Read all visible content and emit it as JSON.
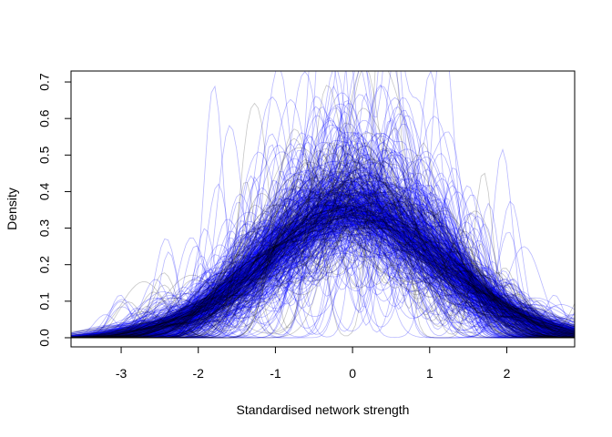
{
  "chart_data": {
    "type": "line",
    "title": "",
    "xlabel": "Standardised network strength",
    "ylabel": "Density",
    "xlim": [
      -3.65,
      2.88
    ],
    "ylim": [
      -0.025,
      0.73
    ],
    "x_ticks": [
      -3,
      -2,
      -1,
      0,
      1,
      2
    ],
    "y_ticks": [
      0.0,
      0.1,
      0.2,
      0.3,
      0.4,
      0.5,
      0.6,
      0.7
    ],
    "grid": false,
    "legend": "none",
    "series_groups": [
      {
        "color": "#0000ff",
        "opacity": 0.28,
        "curve_count": 420,
        "description": "many kernel density curves of standardised strength",
        "representative_curves": [
          {
            "x": [
              -3.6,
              -3,
              -2,
              -1,
              0,
              1,
              2,
              2.9
            ],
            "y": [
              0.02,
              0.05,
              0.12,
              0.25,
              0.3,
              0.25,
              0.1,
              0.03
            ]
          },
          {
            "x": [
              -3.6,
              -3,
              -2,
              -1,
              0,
              1,
              2,
              2.9
            ],
            "y": [
              0.03,
              0.06,
              0.14,
              0.22,
              0.24,
              0.22,
              0.13,
              0.05
            ]
          },
          {
            "x": [
              -3.6,
              -2,
              -1,
              -0.5,
              0,
              0.5,
              1,
              2,
              2.9
            ],
            "y": [
              0.0,
              0.03,
              0.2,
              0.55,
              0.72,
              0.5,
              0.2,
              0.02,
              0.0
            ]
          }
        ]
      },
      {
        "color": "#000000",
        "opacity": 0.22,
        "curve_count": 120,
        "description": "density curves drawn in black",
        "representative_curves": [
          {
            "x": [
              -3.6,
              -2,
              -1,
              0,
              0.5,
              1,
              2,
              2.9
            ],
            "y": [
              0.0,
              0.08,
              0.28,
              0.36,
              0.4,
              0.32,
              0.06,
              0.0
            ]
          }
        ]
      }
    ]
  }
}
